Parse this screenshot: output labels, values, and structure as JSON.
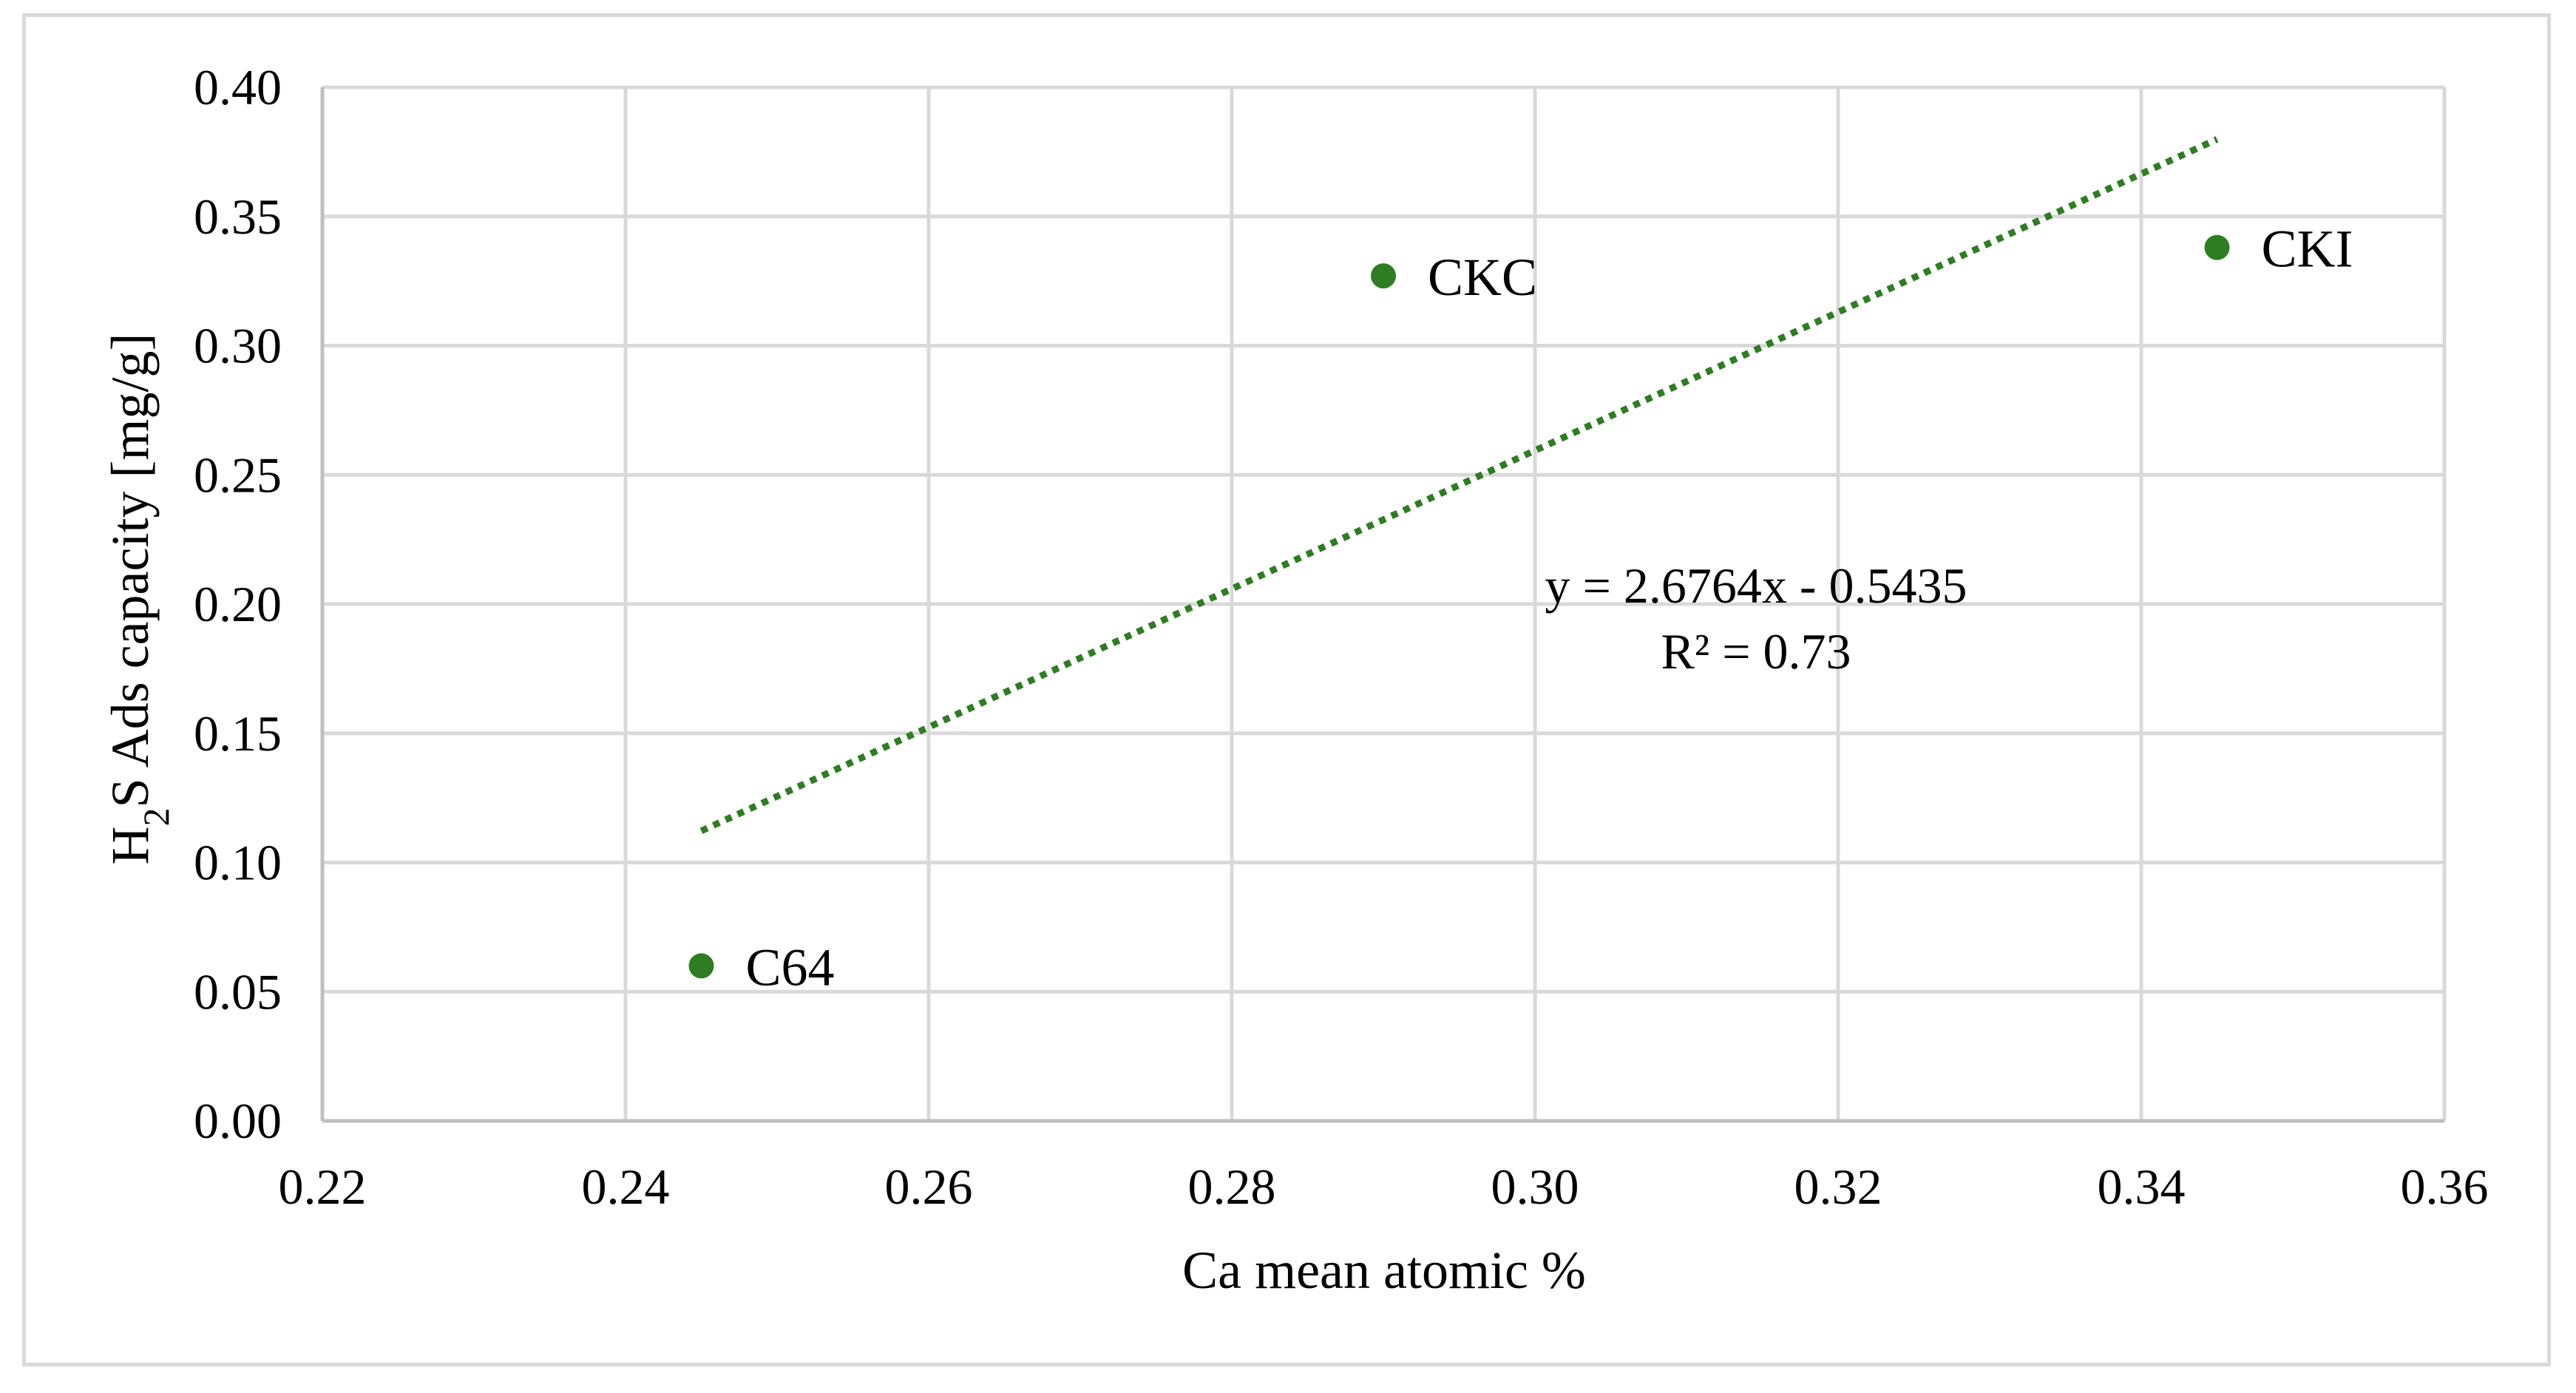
{
  "chart_data": {
    "type": "scatter",
    "title": "",
    "xlabel": "Ca mean atomic %",
    "ylabel": {
      "main": "H",
      "sub": "2",
      "rest": "S Ads capacity [mg/g]"
    },
    "xlim": [
      0.22,
      0.36
    ],
    "ylim": [
      0.0,
      0.4
    ],
    "x_ticks": [
      "0.22",
      "0.24",
      "0.26",
      "0.28",
      "0.30",
      "0.32",
      "0.34",
      "0.36"
    ],
    "y_ticks": [
      "0.00",
      "0.05",
      "0.10",
      "0.15",
      "0.20",
      "0.25",
      "0.30",
      "0.35",
      "0.40"
    ],
    "grid": true,
    "legend": "none",
    "series": [
      {
        "points": [
          {
            "label": "C64",
            "x": 0.245,
            "y": 0.06
          },
          {
            "label": "CKC",
            "x": 0.29,
            "y": 0.327
          },
          {
            "label": "CKI",
            "x": 0.345,
            "y": 0.338
          }
        ]
      }
    ],
    "trendline": {
      "type": "linear",
      "style": "dotted",
      "x_range": [
        0.245,
        0.345
      ],
      "slope": 2.6764,
      "intercept": -0.5435,
      "equation": "y = 2.6764x - 0.5435",
      "r_squared": "R² = 0.73"
    },
    "colors": {
      "marker": "#2e7d22",
      "trendline": "#2e7d22",
      "grid": "#d9d9d9",
      "axis": "#bfbfbf"
    }
  }
}
